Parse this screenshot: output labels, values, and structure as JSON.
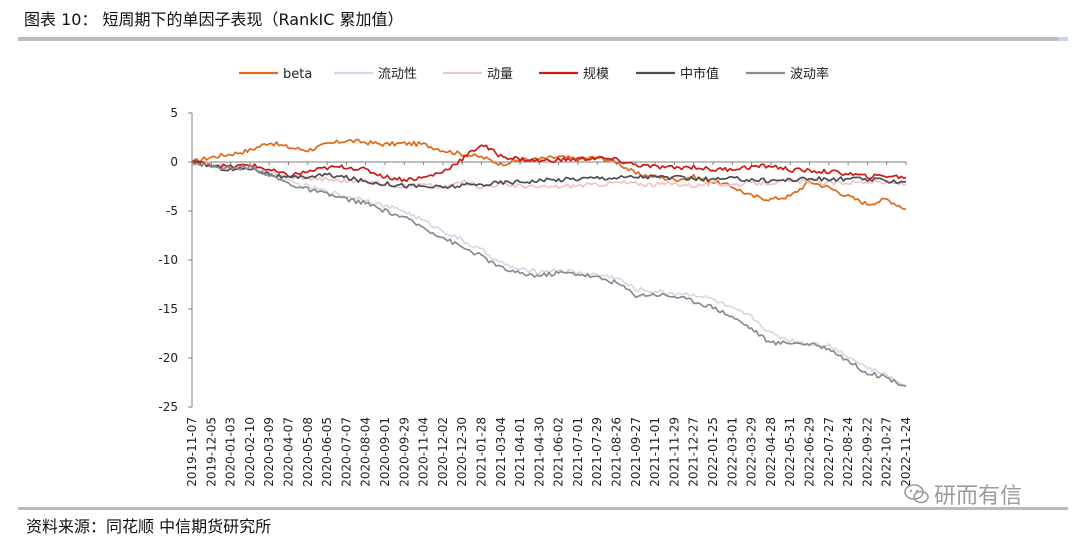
{
  "figure": {
    "title": "图表 10：  短周期下的单因子表现（RankIC 累加值）",
    "source": "资料来源：同花顺   中信期货研究所",
    "watermark": "研而有信"
  },
  "chart_data": {
    "type": "line",
    "title": "",
    "xlabel": "",
    "ylabel": "",
    "ylim": [
      -25,
      5
    ],
    "yticks": [
      5,
      0,
      -5,
      -10,
      -15,
      -20,
      -25
    ],
    "grid": false,
    "legend_position": "top-center",
    "x_tick_labels": [
      "2019-11-07",
      "2019-12-05",
      "2020-01-03",
      "2020-02-10",
      "2020-03-09",
      "2020-04-07",
      "2020-05-08",
      "2020-06-05",
      "2020-07-07",
      "2020-08-04",
      "2020-09-01",
      "2020-09-29",
      "2020-11-04",
      "2020-12-02",
      "2020-12-30",
      "2021-01-28",
      "2021-03-04",
      "2021-04-01",
      "2021-04-30",
      "2021-06-02",
      "2021-07-01",
      "2021-07-29",
      "2021-08-26",
      "2021-09-27",
      "2021-11-01",
      "2021-11-29",
      "2021-12-27",
      "2022-01-25",
      "2022-03-01",
      "2022-03-29",
      "2022-04-28",
      "2022-05-31",
      "2022-06-29",
      "2022-07-27",
      "2022-08-24",
      "2022-09-22",
      "2022-10-27",
      "2022-11-24"
    ],
    "series": [
      {
        "name": "beta",
        "color": "#e06a1a",
        "values": [
          0.0,
          0.5,
          0.8,
          1.2,
          2.0,
          1.5,
          1.2,
          1.8,
          2.2,
          2.0,
          1.8,
          1.9,
          1.8,
          1.2,
          0.8,
          0.5,
          -0.2,
          0.2,
          0.3,
          0.5,
          0.3,
          0.5,
          0.0,
          -1.2,
          -1.5,
          -1.8,
          -1.5,
          -2.0,
          -2.5,
          -3.5,
          -3.8,
          -3.5,
          -2.0,
          -2.6,
          -3.5,
          -4.3,
          -3.8,
          -4.8
        ]
      },
      {
        "name": "流动性",
        "color": "#d4d9ea",
        "values": [
          0.0,
          -0.5,
          -0.6,
          -0.5,
          -1.2,
          -2.0,
          -2.5,
          -3.0,
          -3.5,
          -3.8,
          -4.5,
          -5.0,
          -6.0,
          -7.0,
          -8.0,
          -9.0,
          -10.3,
          -11.0,
          -11.2,
          -11.0,
          -11.3,
          -11.5,
          -11.8,
          -13.0,
          -13.2,
          -13.4,
          -13.5,
          -14.0,
          -15.0,
          -15.8,
          -17.5,
          -18.2,
          -18.5,
          -18.7,
          -19.8,
          -21.0,
          -21.8,
          -22.8
        ]
      },
      {
        "name": "动量",
        "color": "#f3c3c3",
        "values": [
          0.0,
          -0.3,
          -0.5,
          -0.4,
          -1.0,
          -1.5,
          -1.6,
          -1.8,
          -1.9,
          -2.0,
          -2.2,
          -2.5,
          -2.3,
          -2.6,
          -2.0,
          -2.5,
          -2.3,
          -2.4,
          -2.6,
          -2.5,
          -2.4,
          -2.3,
          -2.1,
          -2.2,
          -2.3,
          -2.2,
          -2.4,
          -2.2,
          -2.3,
          -2.2,
          -2.1,
          -2.0,
          -2.0,
          -2.2,
          -2.1,
          -2.0,
          -2.1,
          -2.3
        ]
      },
      {
        "name": "规模",
        "color": "#cc1a1a",
        "values": [
          0.0,
          -0.3,
          -0.5,
          -0.3,
          -0.8,
          -1.4,
          -1.0,
          -0.6,
          -0.5,
          -0.8,
          -1.5,
          -1.8,
          -1.6,
          -1.0,
          0.3,
          1.8,
          0.6,
          0.3,
          0.1,
          0.2,
          0.3,
          0.4,
          0.2,
          -0.3,
          -0.5,
          -0.6,
          -0.5,
          -0.8,
          -0.7,
          -0.5,
          -0.4,
          -0.8,
          -0.9,
          -1.0,
          -1.2,
          -1.5,
          -1.4,
          -1.6
        ]
      },
      {
        "name": "中市值",
        "color": "#4a4f57",
        "values": [
          0.0,
          -0.4,
          -0.8,
          -0.6,
          -1.2,
          -1.7,
          -1.5,
          -1.3,
          -1.6,
          -2.0,
          -2.2,
          -2.4,
          -2.5,
          -2.6,
          -2.4,
          -2.3,
          -2.1,
          -2.0,
          -1.9,
          -1.8,
          -1.7,
          -1.6,
          -1.6,
          -1.5,
          -1.5,
          -1.6,
          -1.7,
          -1.8,
          -1.7,
          -1.8,
          -1.9,
          -1.8,
          -1.7,
          -1.8,
          -1.7,
          -1.8,
          -1.9,
          -2.0
        ]
      },
      {
        "name": "波动率",
        "color": "#8c8c8c",
        "values": [
          0.0,
          -0.4,
          -0.7,
          -0.5,
          -1.3,
          -2.2,
          -2.8,
          -3.3,
          -3.8,
          -4.2,
          -5.0,
          -5.7,
          -6.7,
          -7.7,
          -8.7,
          -9.6,
          -10.8,
          -11.4,
          -11.6,
          -11.3,
          -11.4,
          -11.8,
          -12.3,
          -13.6,
          -13.5,
          -13.7,
          -14.2,
          -14.8,
          -15.8,
          -17.0,
          -18.5,
          -18.4,
          -18.6,
          -19.0,
          -20.3,
          -21.5,
          -22.0,
          -22.9
        ]
      }
    ]
  }
}
